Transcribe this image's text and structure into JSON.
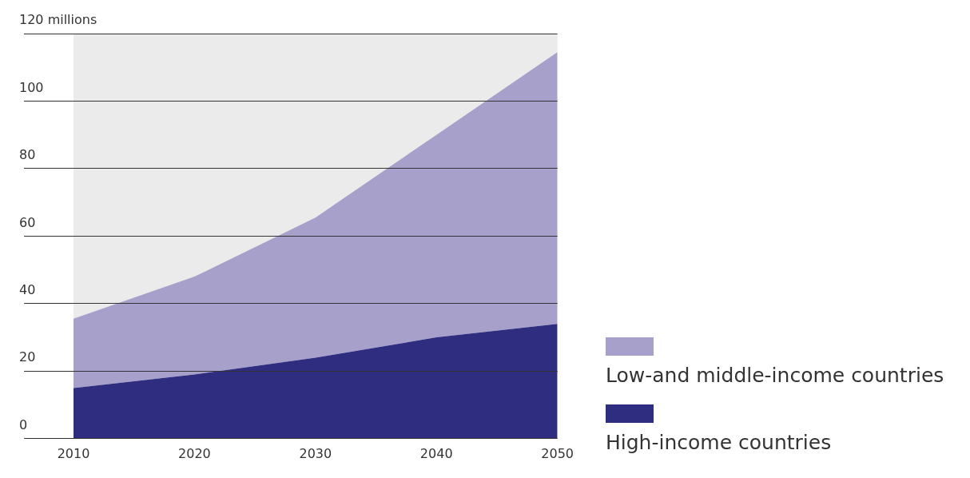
{
  "chart_data": {
    "type": "area",
    "stacked": true,
    "categories": [
      "2010",
      "2020",
      "2030",
      "2040",
      "2050"
    ],
    "series": [
      {
        "name": "High-income countries",
        "color": "#2e2d80",
        "values": [
          15,
          19,
          24,
          30,
          34
        ]
      },
      {
        "name": "Low-and middle-income countries",
        "color": "#a6a0cb",
        "values": [
          20.5,
          29,
          41.5,
          60,
          80.5
        ]
      }
    ],
    "ylim": [
      0,
      120
    ],
    "yticks": [
      0,
      20,
      40,
      60,
      80,
      100,
      {
        "value": 120,
        "label": "120 millions"
      }
    ],
    "grid": "y",
    "legend": "right"
  }
}
